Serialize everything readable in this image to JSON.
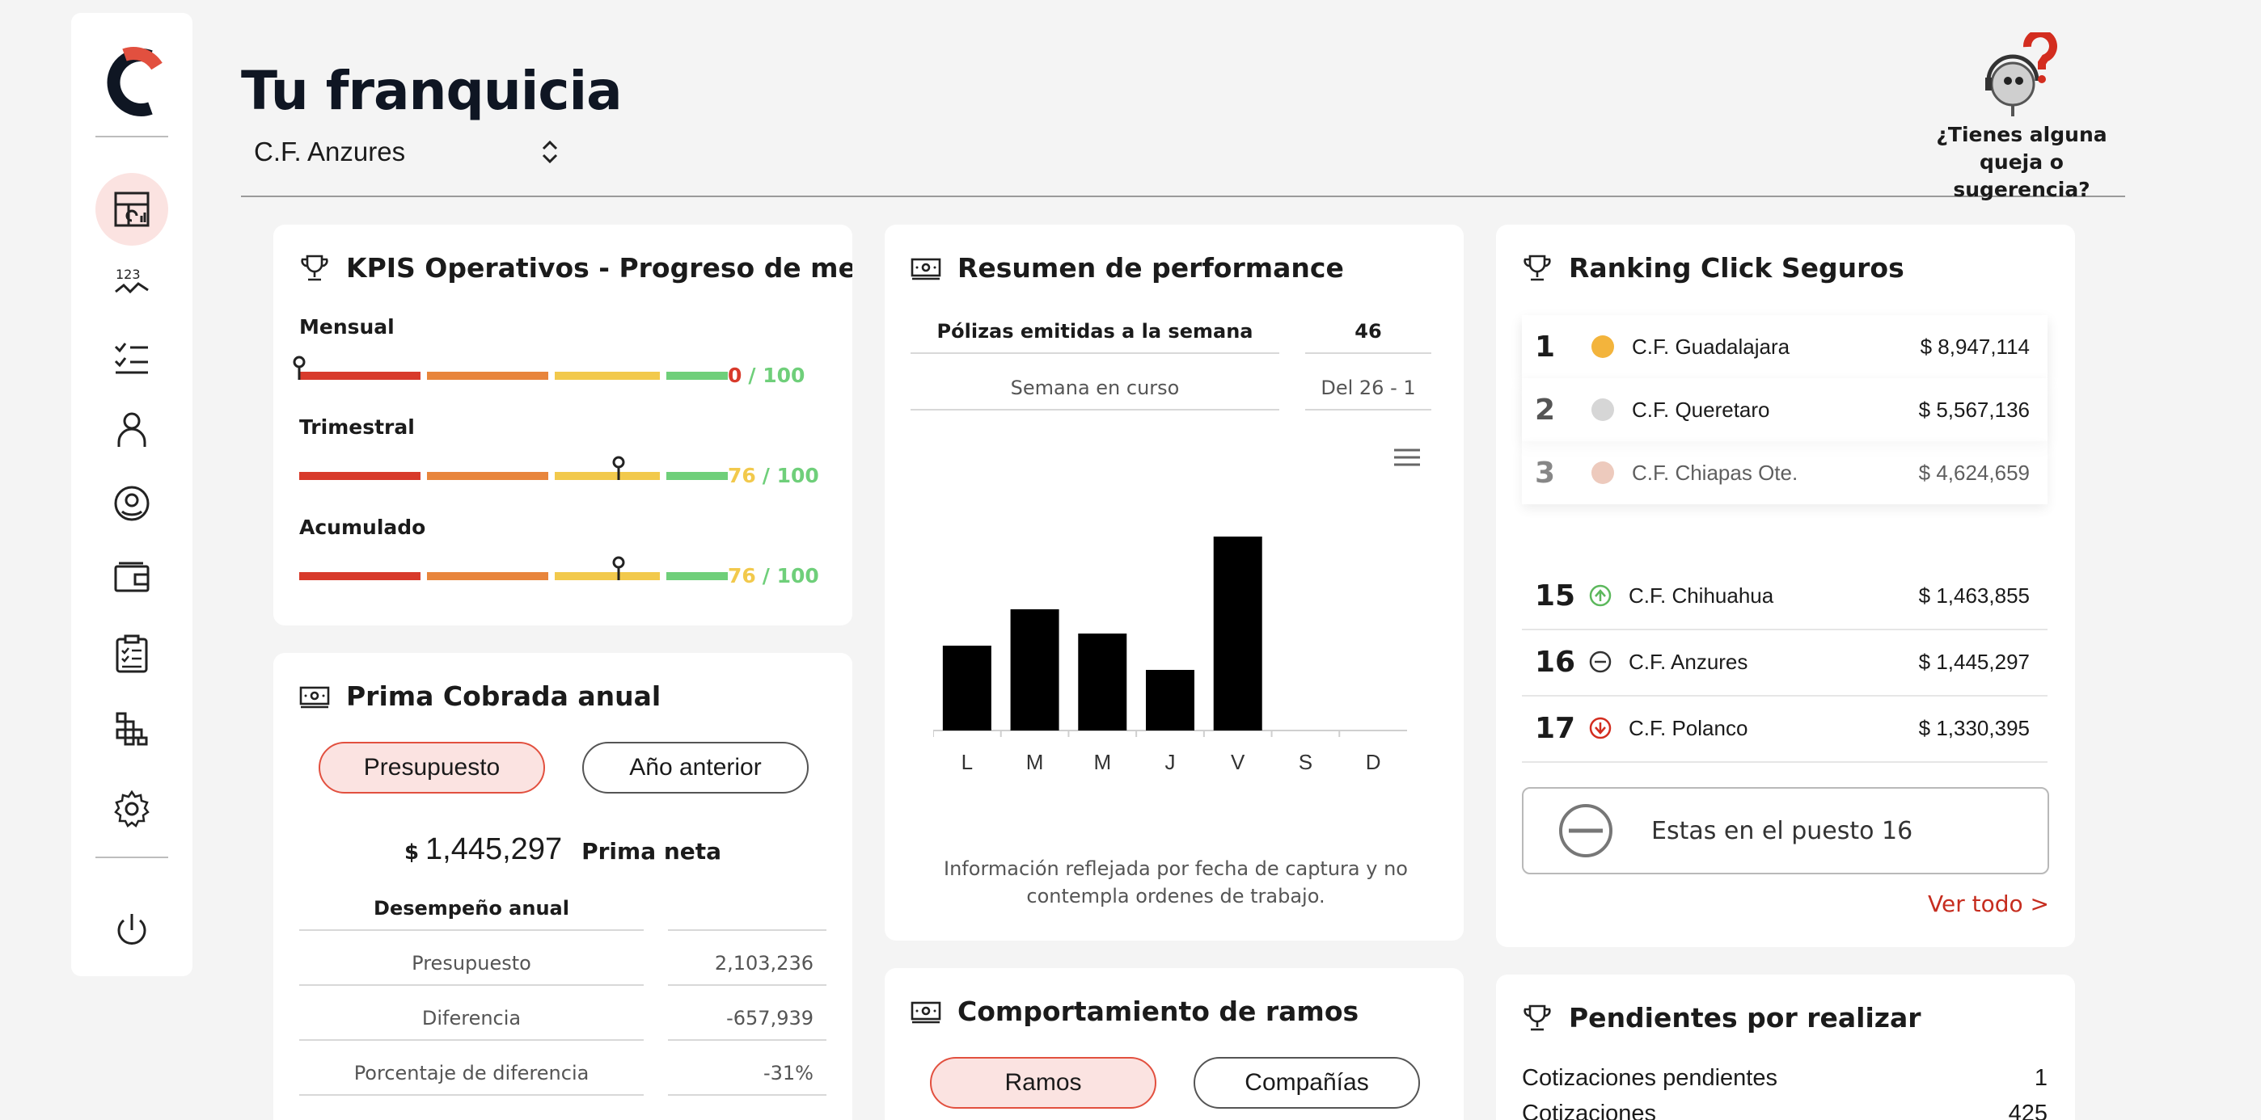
{
  "header": {
    "title": "Tu franquicia",
    "franchise_selected": "C.F. Anzures",
    "help_text": "¿Tienes alguna queja o sugerencia?"
  },
  "sidebar": {
    "items": [
      {
        "icon": "dashboard-icon",
        "active": true
      },
      {
        "icon": "numbers-chart-icon"
      },
      {
        "icon": "checklist-icon"
      },
      {
        "icon": "user-icon"
      },
      {
        "icon": "target-icon"
      },
      {
        "icon": "wallet-icon"
      },
      {
        "icon": "clipboard-icon"
      },
      {
        "icon": "grid-blocks-icon"
      },
      {
        "icon": "gear-icon"
      },
      {
        "icon": "power-icon"
      }
    ]
  },
  "colors": {
    "accent_red": "#e2503f",
    "bar_red": "#d83a2b",
    "bar_orange": "#e8853c",
    "bar_yellow": "#f2c94c",
    "bar_green": "#6fcf7a",
    "gold": "#f3b43c",
    "silver": "#d6d6d6",
    "bronze": "#e6b4a2"
  },
  "kpis": {
    "title": "KPIS Operativos - Progreso de meta",
    "rows": [
      {
        "label": "Mensual",
        "value": "0",
        "total": "/ 100",
        "progress": 0.0,
        "value_color": "#d83a2b"
      },
      {
        "label": "Trimestral",
        "value": "76",
        "total": "/ 100",
        "progress": 0.76,
        "value_color": "#f2c94c"
      },
      {
        "label": "Acumulado",
        "value": "76",
        "total": "/ 100",
        "progress": 0.76,
        "value_color": "#f2c94c"
      }
    ]
  },
  "prima": {
    "title": "Prima Cobrada anual",
    "tab_budget": "Presupuesto",
    "tab_prev": "Año anterior",
    "currency": "$",
    "amount": "1,445,297",
    "amount_label": "Prima neta",
    "table_header": "Desempeño anual",
    "rows": [
      {
        "label": "Presupuesto",
        "value": "2,103,236"
      },
      {
        "label": "Diferencia",
        "value": "-657,939"
      },
      {
        "label": "Porcentaje de diferencia",
        "value": "-31%"
      }
    ]
  },
  "performance": {
    "title": "Resumen de performance",
    "row_label": "Pólizas emitidas a la semana",
    "row_value": "46",
    "week_label": "Semana en curso",
    "week_range": "Del 26 - 1",
    "note": "Información reflejada por fecha de captura y no contempla ordenes de trabajo."
  },
  "chart_data": {
    "type": "bar",
    "categories": [
      "L",
      "M",
      "M",
      "J",
      "V",
      "S",
      "D"
    ],
    "values": [
      7,
      10,
      8,
      5,
      16,
      0,
      0
    ],
    "ylim": [
      0,
      18
    ],
    "grid": false,
    "color": "#000000"
  },
  "behaviour": {
    "title": "Comportamiento de ramos",
    "tab_ramos": "Ramos",
    "tab_companias": "Compañías"
  },
  "ranking": {
    "title": "Ranking Click Seguros",
    "top": [
      {
        "pos": "1",
        "name": "C.F. Guadalajara",
        "amount": "$ 8,947,114",
        "dot": "#f3b43c"
      },
      {
        "pos": "2",
        "name": "C.F. Queretaro",
        "amount": "$ 5,567,136",
        "dot": "#d6d6d6"
      },
      {
        "pos": "3",
        "name": "C.F. Chiapas Ote.",
        "amount": "$ 4,624,659",
        "dot": "#e6b4a2"
      }
    ],
    "nearby": [
      {
        "pos": "15",
        "name": "C.F. Chihuahua",
        "amount": "$ 1,463,855",
        "trend": "up"
      },
      {
        "pos": "16",
        "name": "C.F. Anzures",
        "amount": "$ 1,445,297",
        "trend": "same"
      },
      {
        "pos": "17",
        "name": "C.F. Polanco",
        "amount": "$ 1,330,395",
        "trend": "down"
      }
    ],
    "position_text": "Estas en el puesto 16",
    "see_all": "Ver todo >"
  },
  "pending": {
    "title": "Pendientes por realizar",
    "rows": [
      {
        "label": "Cotizaciones pendientes",
        "value": "1"
      },
      {
        "label": "Cotizaciones",
        "value": "425"
      }
    ]
  }
}
